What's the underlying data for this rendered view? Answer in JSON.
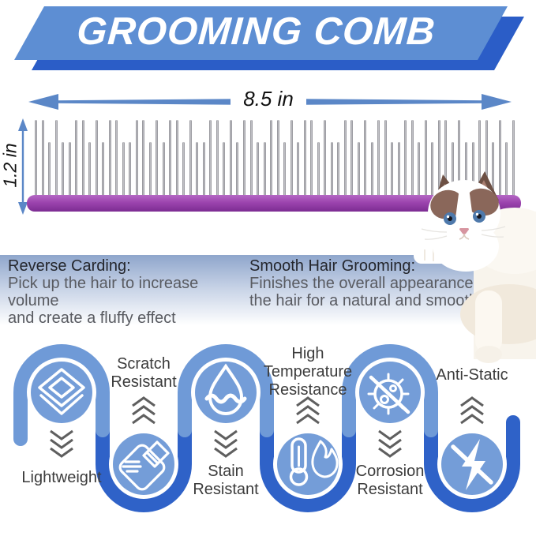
{
  "banner": {
    "title": "GROOMING COMB"
  },
  "dimensions": {
    "width_label": "8.5 in",
    "height_label": "1.2 in"
  },
  "benefits": {
    "left": {
      "heading": "Reverse Carding:",
      "body": "Pick up the hair to increase volume\nand create a fluffy effect"
    },
    "right": {
      "heading": "Smooth Hair Grooming:",
      "body": "Finishes the overall appearance of\nthe hair for a natural and smooth"
    }
  },
  "features": {
    "items": [
      {
        "label": "Lightweight",
        "icon": "layers-icon",
        "position": "top"
      },
      {
        "label": "Scratch\nResistant",
        "icon": "scratch-pad-icon",
        "position": "bottom"
      },
      {
        "label": "Stain\nResistant",
        "icon": "water-drop-icon",
        "position": "top"
      },
      {
        "label": "High\nTemperature\nResistance",
        "icon": "thermometer-flame-icon",
        "position": "bottom"
      },
      {
        "label": "Corrosion\nResistant",
        "icon": "no-germ-icon",
        "position": "top"
      },
      {
        "label": "Anti-Static",
        "icon": "no-static-icon",
        "position": "bottom"
      }
    ]
  },
  "colors": {
    "banner_light": "#5d8ed3",
    "banner_dark": "#2b5dc7",
    "tube_light": "#6f9ad7",
    "tube_dark": "#2f62c8",
    "circle_fill": "#749dd8",
    "spine_purple": "#9c44ae",
    "arrow_blue": "#5b87c7"
  },
  "comb": {
    "teeth_count": 72,
    "pattern": [
      1,
      1,
      0,
      1,
      0,
      0,
      1,
      1,
      0,
      1,
      0,
      1,
      1,
      0,
      0,
      1,
      1,
      0,
      1,
      0
    ]
  }
}
